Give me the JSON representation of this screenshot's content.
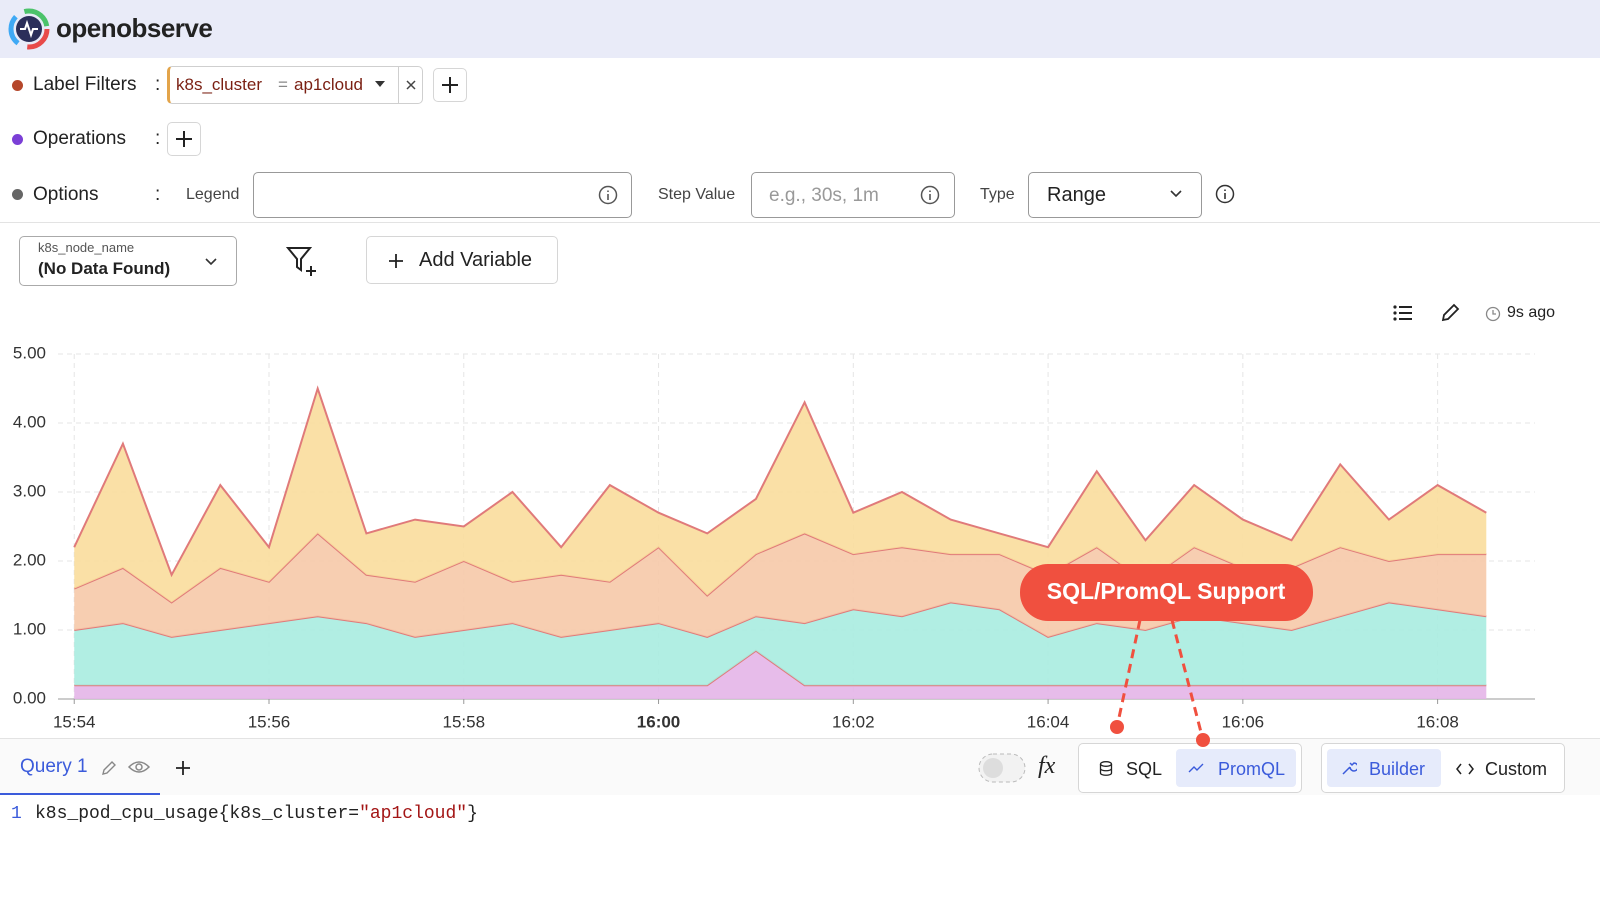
{
  "header": {
    "brand": "openobserve"
  },
  "separator": ":",
  "label_filters": {
    "label": "Label Filters",
    "key": "k8s_cluster",
    "op": "=",
    "value": "ap1cloud"
  },
  "operations": {
    "label": "Operations"
  },
  "options": {
    "label": "Options",
    "legend": "Legend",
    "step_value": "Step Value",
    "step_placeholder": "e.g., 30s, 1m",
    "type": "Type",
    "type_value": "Range"
  },
  "variables": {
    "name": "k8s_node_name",
    "value": "(No Data Found)",
    "add": "Add Variable"
  },
  "toolbar": {
    "refreshed": "9s ago"
  },
  "query": {
    "tab": "Query 1",
    "fx": "fx",
    "sql": "SQL",
    "promql": "PromQL",
    "builder": "Builder",
    "custom": "Custom",
    "line_number": "1",
    "metric": "k8s_pod_cpu_usage{k8s_cluster=",
    "string": "\"ap1cloud\"",
    "close": "}"
  },
  "annotation": "SQL/PromQL Support",
  "chart_data": {
    "type": "area",
    "stacked": true,
    "x": [
      "15:54:00",
      "15:54:30",
      "15:55:00",
      "15:55:30",
      "15:56:00",
      "15:56:30",
      "15:57:00",
      "15:57:30",
      "15:58:00",
      "15:58:30",
      "15:59:00",
      "15:59:30",
      "16:00:00",
      "16:00:30",
      "16:01:00",
      "16:01:30",
      "16:02:00",
      "16:02:30",
      "16:03:00",
      "16:03:30",
      "16:04:00",
      "16:04:30",
      "16:05:00",
      "16:05:30",
      "16:06:00",
      "16:06:30",
      "16:07:00",
      "16:07:30",
      "16:08:00",
      "16:08:30"
    ],
    "xlim": [
      "15:53:50",
      "16:09:00"
    ],
    "xticks": [
      "15:54",
      "15:56",
      "15:58",
      "16:00",
      "16:02",
      "16:04",
      "16:06",
      "16:08"
    ],
    "ylim": [
      0,
      5
    ],
    "yticks": [
      {
        "value": 0,
        "label": "0.00"
      },
      {
        "value": 1,
        "label": "1.00"
      },
      {
        "value": 2,
        "label": "2.00"
      },
      {
        "value": 3,
        "label": "3.00"
      },
      {
        "value": 4,
        "label": "4.00"
      },
      {
        "value": 5,
        "label": "5.00"
      }
    ],
    "grid": true,
    "series": [
      {
        "color": "#e4b5e8",
        "values": [
          0.2,
          0.2,
          0.2,
          0.2,
          0.2,
          0.2,
          0.2,
          0.2,
          0.2,
          0.2,
          0.2,
          0.2,
          0.2,
          0.2,
          0.7,
          0.2,
          0.2,
          0.2,
          0.2,
          0.2,
          0.2,
          0.2,
          0.2,
          0.2,
          0.2,
          0.2,
          0.2,
          0.2,
          0.2,
          0.2
        ]
      },
      {
        "color": "#a8ece0",
        "values": [
          0.8,
          0.9,
          0.7,
          0.8,
          0.9,
          1.0,
          0.9,
          0.7,
          0.8,
          0.9,
          0.7,
          0.8,
          0.9,
          0.7,
          0.5,
          0.9,
          1.1,
          1.0,
          1.2,
          1.1,
          0.7,
          0.9,
          0.8,
          1.0,
          0.9,
          0.8,
          1.0,
          1.2,
          1.1,
          1.0
        ]
      },
      {
        "color": "#f6c9a8",
        "values": [
          0.6,
          0.8,
          0.5,
          0.9,
          0.6,
          1.2,
          0.7,
          0.8,
          1.0,
          0.6,
          0.9,
          0.7,
          1.1,
          0.6,
          0.9,
          1.3,
          0.8,
          1.0,
          0.7,
          0.8,
          0.9,
          1.1,
          0.7,
          1.0,
          0.8,
          0.9,
          1.0,
          0.6,
          0.8,
          0.9
        ]
      },
      {
        "color": "#f9dd9c",
        "values": [
          0.6,
          1.8,
          0.4,
          1.2,
          0.5,
          2.1,
          0.6,
          0.9,
          0.5,
          1.3,
          0.4,
          1.4,
          0.5,
          0.9,
          0.8,
          1.9,
          0.6,
          0.8,
          0.5,
          0.3,
          0.4,
          1.1,
          0.6,
          0.9,
          0.7,
          0.4,
          1.2,
          0.6,
          1.0,
          0.6
        ]
      }
    ]
  }
}
